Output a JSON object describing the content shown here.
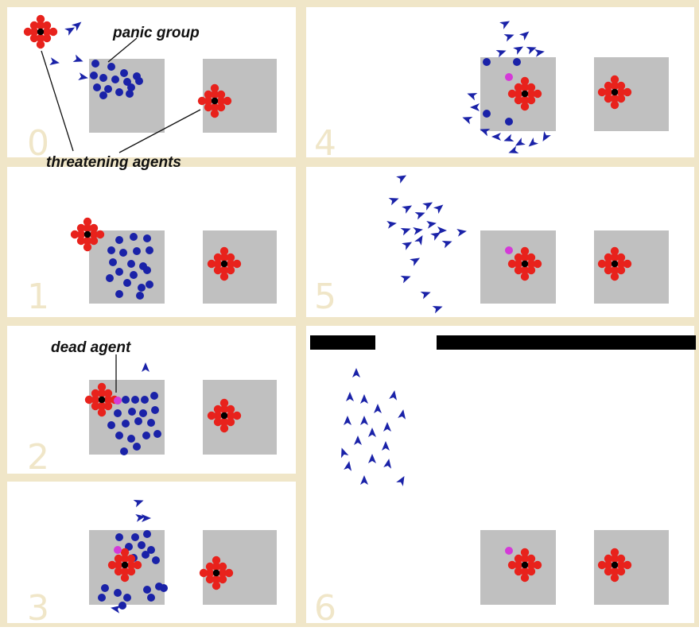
{
  "colors": {
    "frame": "#f0e6c8",
    "panel_bg": "#ffffff",
    "zone": "#c0c0c0",
    "threat_red": "#e8221c",
    "threat_center": "#000000",
    "panic_blue": "#1a22a8",
    "dead": "#d43ad8",
    "wall": "#000000"
  },
  "annotations": {
    "panic_group": "panic group",
    "threatening_agents": "threatening agents",
    "dead_agent": "dead agent"
  },
  "panels": [
    {
      "label": "0",
      "zones": [
        [
          112,
          74,
          95,
          93
        ],
        [
          255,
          74,
          93,
          93
        ]
      ],
      "threats": [
        [
          51,
          40
        ],
        [
          270,
          127
        ]
      ],
      "dead": [],
      "dots": [
        [
          120,
          80
        ],
        [
          140,
          84
        ],
        [
          156,
          92
        ],
        [
          172,
          96
        ],
        [
          118,
          95
        ],
        [
          130,
          98
        ],
        [
          145,
          100
        ],
        [
          160,
          103
        ],
        [
          175,
          102
        ],
        [
          122,
          110
        ],
        [
          136,
          112
        ],
        [
          150,
          116
        ],
        [
          165,
          110
        ],
        [
          130,
          120
        ],
        [
          163,
          118
        ]
      ],
      "arrows": [
        [
          88,
          38,
          -30
        ],
        [
          97,
          32,
          -40
        ],
        [
          68,
          78,
          10
        ],
        [
          98,
          75,
          20
        ],
        [
          104,
          97,
          10
        ]
      ],
      "walls": []
    },
    {
      "label": "1",
      "zones": [
        [
          112,
          290,
          95,
          92
        ],
        [
          255,
          290,
          93,
          92
        ]
      ],
      "threats": [
        [
          110,
          295
        ],
        [
          282,
          332
        ]
      ],
      "dead": [],
      "dots": [
        [
          150,
          302
        ],
        [
          168,
          298
        ],
        [
          185,
          300
        ],
        [
          140,
          315
        ],
        [
          155,
          318
        ],
        [
          172,
          316
        ],
        [
          188,
          315
        ],
        [
          142,
          330
        ],
        [
          165,
          332
        ],
        [
          180,
          335
        ],
        [
          150,
          342
        ],
        [
          168,
          346
        ],
        [
          185,
          340
        ],
        [
          138,
          350
        ],
        [
          160,
          356
        ],
        [
          178,
          362
        ],
        [
          150,
          370
        ],
        [
          176,
          372
        ],
        [
          188,
          358
        ]
      ],
      "arrows": [],
      "walls": []
    },
    {
      "label": "2",
      "zones": [
        [
          112,
          478,
          95,
          94
        ],
        [
          255,
          478,
          93,
          94
        ]
      ],
      "threats": [
        [
          128,
          503
        ],
        [
          282,
          523
        ]
      ],
      "dead": [
        [
          148,
          504
        ]
      ],
      "dots": [
        [
          158,
          503
        ],
        [
          170,
          503
        ],
        [
          182,
          503
        ],
        [
          194,
          498
        ],
        [
          148,
          520
        ],
        [
          166,
          518
        ],
        [
          180,
          520
        ],
        [
          195,
          516
        ],
        [
          140,
          535
        ],
        [
          158,
          533
        ],
        [
          174,
          530
        ],
        [
          190,
          532
        ],
        [
          150,
          548
        ],
        [
          165,
          552
        ],
        [
          184,
          548
        ],
        [
          198,
          546
        ],
        [
          156,
          568
        ],
        [
          172,
          562
        ]
      ],
      "arrows": [
        [
          183,
          463,
          -90
        ]
      ],
      "walls": []
    },
    {
      "label": "3",
      "zones": [
        [
          112,
          667,
          95,
          94
        ],
        [
          255,
          667,
          93,
          94
        ]
      ],
      "threats": [
        [
          157,
          711
        ],
        [
          272,
          721
        ]
      ],
      "dead": [
        [
          148,
          692
        ]
      ],
      "dots": [
        [
          150,
          676
        ],
        [
          170,
          676
        ],
        [
          185,
          672
        ],
        [
          162,
          688
        ],
        [
          178,
          686
        ],
        [
          190,
          692
        ],
        [
          196,
          705
        ],
        [
          168,
          702
        ],
        [
          183,
          698
        ],
        [
          132,
          740
        ],
        [
          148,
          746
        ],
        [
          185,
          742
        ],
        [
          200,
          738
        ],
        [
          128,
          752
        ],
        [
          160,
          752
        ],
        [
          190,
          752
        ],
        [
          206,
          740
        ],
        [
          154,
          762
        ]
      ],
      "arrows": [
        [
          174,
          632,
          -20
        ],
        [
          176,
          651,
          -10
        ],
        [
          183,
          652,
          0
        ],
        [
          146,
          766,
          190
        ]
      ],
      "walls": []
    },
    {
      "label": "4",
      "zones": [
        [
          604,
          72,
          95,
          93
        ],
        [
          747,
          72,
          94,
          93
        ]
      ],
      "threats": [
        [
          660,
          118
        ],
        [
          773,
          116
        ]
      ],
      "dead": [
        [
          640,
          97
        ]
      ],
      "dots": [
        [
          612,
          78
        ],
        [
          650,
          78
        ],
        [
          612,
          143
        ],
        [
          640,
          153
        ]
      ],
      "arrows": [
        [
          635,
          30,
          -30
        ],
        [
          640,
          46,
          -20
        ],
        [
          660,
          44,
          -40
        ],
        [
          652,
          62,
          -30
        ],
        [
          668,
          62,
          -20
        ],
        [
          678,
          66,
          -10
        ],
        [
          630,
          66,
          -20
        ],
        [
          594,
          120,
          200
        ],
        [
          598,
          135,
          180
        ],
        [
          588,
          150,
          200
        ],
        [
          610,
          165,
          200
        ],
        [
          625,
          172,
          180
        ],
        [
          640,
          175,
          160
        ],
        [
          654,
          180,
          150
        ],
        [
          670,
          180,
          140
        ],
        [
          686,
          172,
          120
        ],
        [
          646,
          190,
          160
        ]
      ],
      "walls": []
    },
    {
      "label": "5",
      "zones": [
        [
          604,
          290,
          95,
          92
        ],
        [
          747,
          290,
          94,
          92
        ]
      ],
      "threats": [
        [
          660,
          332
        ],
        [
          773,
          332
        ]
      ],
      "dead": [
        [
          640,
          315
        ]
      ],
      "dots": [],
      "arrows": [
        [
          505,
          224,
          -30
        ],
        [
          495,
          252,
          -20
        ],
        [
          512,
          262,
          -30
        ],
        [
          528,
          270,
          -20
        ],
        [
          538,
          258,
          -30
        ],
        [
          552,
          262,
          -40
        ],
        [
          492,
          282,
          -10
        ],
        [
          510,
          290,
          -20
        ],
        [
          525,
          290,
          -10
        ],
        [
          542,
          282,
          -10
        ],
        [
          555,
          290,
          0
        ],
        [
          528,
          302,
          -60
        ],
        [
          548,
          296,
          -30
        ],
        [
          562,
          306,
          -20
        ],
        [
          580,
          292,
          -10
        ],
        [
          512,
          308,
          -30
        ],
        [
          522,
          328,
          -30
        ],
        [
          510,
          350,
          -20
        ],
        [
          535,
          370,
          -20
        ],
        [
          550,
          388,
          -20
        ]
      ],
      "walls": []
    },
    {
      "label": "6",
      "zones": [
        [
          604,
          667,
          95,
          94
        ],
        [
          747,
          667,
          94,
          94
        ]
      ],
      "threats": [
        [
          660,
          711
        ],
        [
          773,
          711
        ]
      ],
      "dead": [
        [
          640,
          693
        ]
      ],
      "dots": [],
      "arrows": [
        [
          448,
          470,
          -90
        ],
        [
          440,
          500,
          -90
        ],
        [
          458,
          503,
          -90
        ],
        [
          495,
          498,
          -80
        ],
        [
          437,
          530,
          -90
        ],
        [
          458,
          530,
          -90
        ],
        [
          475,
          515,
          -90
        ],
        [
          506,
          522,
          -80
        ],
        [
          450,
          555,
          -90
        ],
        [
          468,
          545,
          -90
        ],
        [
          487,
          538,
          -90
        ],
        [
          485,
          562,
          -90
        ],
        [
          432,
          570,
          -110
        ],
        [
          468,
          578,
          -90
        ],
        [
          438,
          587,
          -80
        ],
        [
          488,
          584,
          -80
        ],
        [
          458,
          605,
          -90
        ],
        [
          505,
          605,
          -60
        ]
      ],
      "walls": [
        [
          390,
          422,
          82,
          18
        ],
        [
          549,
          422,
          326,
          18
        ]
      ]
    }
  ]
}
